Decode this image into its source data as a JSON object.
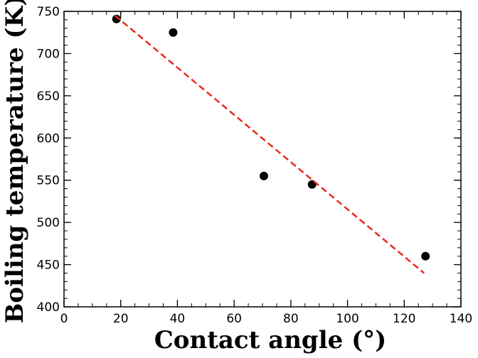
{
  "chart_data": {
    "type": "scatter",
    "x_label": "Contact angle (°)",
    "y_label": "Boiling temperature (K)",
    "xlim": [
      0,
      140
    ],
    "xticks": [
      0,
      20,
      40,
      60,
      80,
      100,
      120,
      140
    ],
    "xminorticks": [
      0,
      5,
      10,
      15,
      20,
      25,
      30,
      35,
      40,
      45,
      50,
      55,
      60,
      65,
      70,
      75,
      80,
      85,
      90,
      95,
      100,
      105,
      110,
      115,
      120,
      125,
      130,
      135,
      140
    ],
    "ylim": [
      400,
      750
    ],
    "yticks": [
      400,
      450,
      500,
      550,
      600,
      650,
      700,
      750
    ],
    "yminorticks": [
      400,
      410,
      420,
      430,
      440,
      450,
      460,
      470,
      480,
      490,
      500,
      510,
      520,
      530,
      540,
      550,
      560,
      570,
      580,
      590,
      600,
      610,
      620,
      630,
      640,
      650,
      660,
      670,
      680,
      690,
      700,
      710,
      720,
      730,
      740,
      750
    ],
    "series": [
      {
        "kind": "scatter",
        "color": "#000000",
        "x": [
          18.5,
          38.5,
          70.5,
          87.5,
          127.5
        ],
        "values": [
          741,
          725,
          555,
          545,
          460
        ]
      },
      {
        "kind": "line",
        "color": "#e8291c",
        "dashed": true,
        "x": [
          18,
          127
        ],
        "values": [
          745,
          440
        ]
      }
    ]
  }
}
